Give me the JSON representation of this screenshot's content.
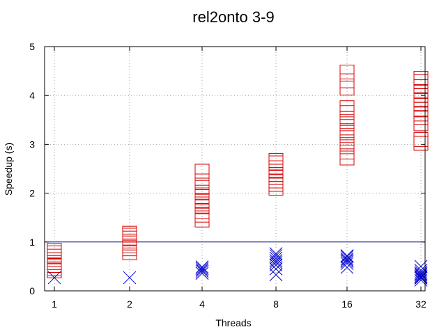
{
  "chart_data": {
    "type": "scatter",
    "title": "rel2onto 3-9",
    "xlabel": "Threads",
    "ylabel": "Speedup (s)",
    "categories": [
      "1",
      "2",
      "4",
      "8",
      "16",
      "32"
    ],
    "ylim": [
      0,
      5
    ],
    "yticks": [
      "0",
      "1",
      "2",
      "3",
      "4",
      "5"
    ],
    "grid": true,
    "reference_line": {
      "y": 1,
      "color": "#00008b"
    },
    "series": [
      {
        "marker": "square",
        "color": "#d40000",
        "points": [
          {
            "x": "1",
            "ys": [
              0.41,
              0.45,
              0.52,
              0.58,
              0.64,
              0.71,
              0.78,
              0.83
            ]
          },
          {
            "x": "2",
            "ys": [
              0.78,
              0.86,
              0.92,
              0.98,
              1.02,
              1.08,
              1.14,
              1.18
            ]
          },
          {
            "x": "4",
            "ys": [
              1.45,
              1.55,
              1.62,
              1.72,
              1.78,
              1.85,
              1.93,
              2.02,
              2.12,
              2.25,
              2.45
            ]
          },
          {
            "x": "8",
            "ys": [
              2.1,
              2.18,
              2.25,
              2.32,
              2.38,
              2.45,
              2.52,
              2.62,
              2.67
            ]
          },
          {
            "x": "16",
            "ys": [
              2.72,
              2.84,
              2.95,
              3.05,
              3.18,
              3.28,
              3.42,
              3.53,
              3.65,
              3.75,
              4.15,
              4.3,
              4.48
            ]
          },
          {
            "x": "32",
            "ys": [
              3.02,
              3.1,
              3.42,
              3.55,
              3.62,
              3.72,
              3.82,
              3.92,
              4.0,
              4.08,
              4.18,
              4.28,
              4.35
            ]
          }
        ]
      },
      {
        "marker": "cross",
        "color": "#0000cd",
        "points": [
          {
            "x": "1",
            "ys": [
              0.27
            ]
          },
          {
            "x": "2",
            "ys": [
              0.27
            ]
          },
          {
            "x": "4",
            "ys": [
              0.36,
              0.4,
              0.43,
              0.46,
              0.49
            ]
          },
          {
            "x": "8",
            "ys": [
              0.33,
              0.45,
              0.53,
              0.58,
              0.62,
              0.67,
              0.72,
              0.76
            ]
          },
          {
            "x": "16",
            "ys": [
              0.48,
              0.56,
              0.6,
              0.63,
              0.66,
              0.7,
              0.72
            ]
          },
          {
            "x": "32",
            "ys": [
              0.22,
              0.26,
              0.28,
              0.3,
              0.33,
              0.35,
              0.38,
              0.42,
              0.5
            ]
          }
        ]
      }
    ]
  }
}
